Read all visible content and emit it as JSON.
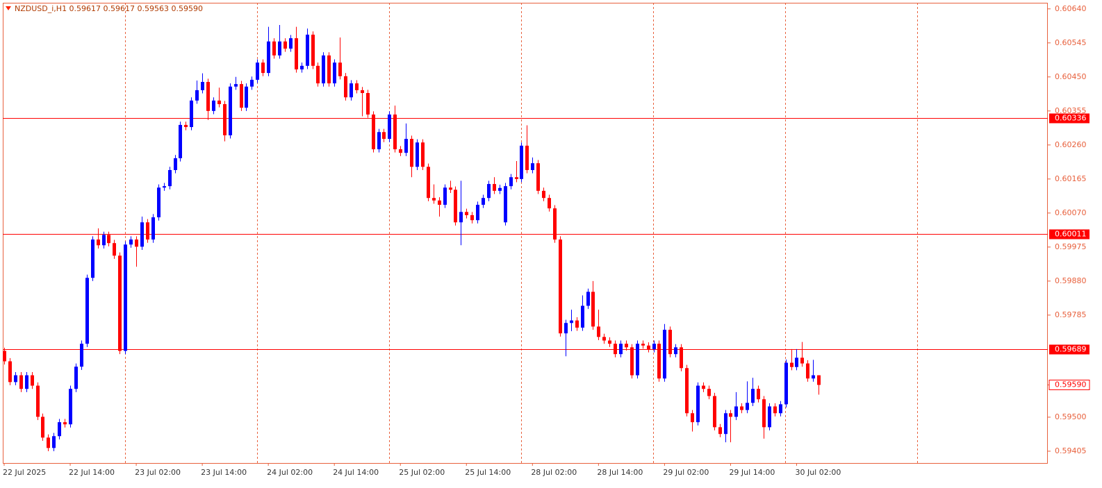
{
  "chart_data": {
    "type": "candlestick",
    "title": "NZDUSD_i,H1  0.59617 0.59617 0.59563 0.59590",
    "up_color": "#0000ff",
    "down_color": "#ff0000",
    "categories": [
      "22 Jul 2025",
      null,
      null,
      null,
      null,
      null,
      null,
      null,
      null,
      null,
      null,
      null,
      "22 Jul 14:00",
      null,
      null,
      null,
      null,
      null,
      null,
      null,
      null,
      null,
      null,
      null,
      "23 Jul 02:00",
      null,
      null,
      null,
      null,
      null,
      null,
      null,
      null,
      null,
      null,
      null,
      "23 Jul 14:00",
      null,
      null,
      null,
      null,
      null,
      null,
      null,
      null,
      null,
      null,
      null,
      "24 Jul 02:00",
      null,
      null,
      null,
      null,
      null,
      null,
      null,
      null,
      null,
      null,
      null,
      "24 Jul 14:00",
      null,
      null,
      null,
      null,
      null,
      null,
      null,
      null,
      null,
      null,
      null,
      "25 Jul 02:00",
      null,
      null,
      null,
      null,
      null,
      null,
      null,
      null,
      null,
      null,
      null,
      "25 Jul 14:00",
      null,
      null,
      null,
      null,
      null,
      null,
      null,
      null,
      null,
      null,
      null,
      "28 Jul 02:00",
      null,
      null,
      null,
      null,
      null,
      null,
      null,
      null,
      null,
      null,
      null,
      "28 Jul 14:00",
      null,
      null,
      null,
      null,
      null,
      null,
      null,
      null,
      null,
      null,
      null,
      "29 Jul 02:00",
      null,
      null,
      null,
      null,
      null,
      null,
      null,
      null,
      null,
      null,
      null,
      "29 Jul 14:00",
      null,
      null,
      null,
      null,
      null,
      null,
      null,
      null,
      null,
      null,
      null,
      "30 Jul 02:00",
      null,
      null,
      null,
      null
    ],
    "open": [
      0.59685,
      0.59656,
      0.59598,
      0.59617,
      0.59579,
      0.59617,
      0.59588,
      0.59501,
      0.59443,
      0.59414,
      0.59447,
      0.59486,
      0.5948,
      0.59579,
      0.59641,
      0.59705,
      0.59889,
      0.59996,
      0.5998,
      0.60009,
      0.59986,
      0.59951,
      0.59685,
      0.59982,
      0.59996,
      0.59976,
      0.60044,
      0.59996,
      0.60058,
      0.60141,
      0.60145,
      0.6019,
      0.60223,
      0.60316,
      0.6031,
      0.60384,
      0.60413,
      0.60436,
      0.60355,
      0.60384,
      0.60374,
      0.60287,
      0.60423,
      0.6043,
      0.60364,
      0.60423,
      0.60442,
      0.6049,
      0.60461,
      0.60549,
      0.6051,
      0.60549,
      0.60529,
      0.60558,
      0.60471,
      0.60481,
      0.60568,
      0.60481,
      0.60432,
      0.6051,
      0.60432,
      0.6049,
      0.60452,
      0.60393,
      0.60432,
      0.60413,
      0.60405,
      0.60345,
      0.60248,
      0.60296,
      0.60277,
      0.60345,
      0.60248,
      0.60238,
      0.60277,
      0.60199,
      0.60267,
      0.60199,
      0.60112,
      0.60105,
      0.60093,
      0.60141,
      0.60135,
      0.60044,
      0.60073,
      0.60064,
      0.6005,
      0.60093,
      0.60112,
      0.60151,
      0.60132,
      0.60044,
      0.60145,
      0.6017,
      0.60165,
      0.60258,
      0.6019,
      0.60209,
      0.60132,
      0.60112,
      0.60083,
      0.59996,
      0.59734,
      0.59763,
      0.5977,
      0.5975,
      0.59811,
      0.5985,
      0.59753,
      0.59724,
      0.59714,
      0.59705,
      0.59676,
      0.59705,
      0.59695,
      0.59617,
      0.59705,
      0.597,
      0.5969,
      0.59705,
      0.59608,
      0.59744,
      0.59676,
      0.59695,
      0.59637,
      0.59511,
      0.59486,
      0.59588,
      0.59579,
      0.59559,
      0.59472,
      0.59453,
      0.59511,
      0.59501,
      0.5953,
      0.5952,
      0.5954,
      0.59579,
      0.5955,
      0.59472,
      0.5953,
      0.59511,
      0.59536,
      0.59652,
      0.5964,
      0.59666,
      0.5965,
      0.59608,
      0.59617
    ],
    "high": [
      0.59694,
      0.59665,
      0.59626,
      0.59626,
      0.59626,
      0.59626,
      0.59597,
      0.5951,
      0.59452,
      0.59456,
      0.59495,
      0.59495,
      0.59588,
      0.5965,
      0.59714,
      0.59898,
      0.60005,
      0.60027,
      0.60018,
      0.60018,
      0.59995,
      0.5996,
      0.59991,
      0.60005,
      0.60005,
      0.6006,
      0.60053,
      0.60067,
      0.6015,
      0.60154,
      0.60199,
      0.60232,
      0.60325,
      0.60325,
      0.60393,
      0.6044,
      0.6046,
      0.60445,
      0.60393,
      0.6042,
      0.60383,
      0.60432,
      0.6045,
      0.60439,
      0.60432,
      0.60451,
      0.60499,
      0.60499,
      0.6059,
      0.60558,
      0.60595,
      0.60558,
      0.60567,
      0.6059,
      0.6049,
      0.60585,
      0.60577,
      0.6049,
      0.60519,
      0.60519,
      0.60499,
      0.6056,
      0.60461,
      0.60441,
      0.60441,
      0.60422,
      0.60414,
      0.60354,
      0.60305,
      0.60305,
      0.60354,
      0.6037,
      0.60257,
      0.6032,
      0.60286,
      0.60276,
      0.60276,
      0.60208,
      0.6015,
      0.60114,
      0.6015,
      0.6016,
      0.60144,
      0.6016,
      0.60082,
      0.60073,
      0.60102,
      0.60121,
      0.6016,
      0.6017,
      0.60149,
      0.60154,
      0.60179,
      0.60215,
      0.60267,
      0.60315,
      0.60225,
      0.60218,
      0.60141,
      0.60121,
      0.60092,
      0.60005,
      0.59772,
      0.598,
      0.59779,
      0.5984,
      0.59859,
      0.5988,
      0.598,
      0.59733,
      0.59723,
      0.59714,
      0.59714,
      0.59714,
      0.59704,
      0.59714,
      0.59714,
      0.59709,
      0.59714,
      0.59714,
      0.5976,
      0.59753,
      0.59704,
      0.59704,
      0.59646,
      0.5952,
      0.59597,
      0.59597,
      0.59588,
      0.59568,
      0.59481,
      0.5952,
      0.5952,
      0.5957,
      0.59539,
      0.596,
      0.5961,
      0.59588,
      0.59559,
      0.59539,
      0.59539,
      0.59545,
      0.59661,
      0.5969,
      0.5969,
      0.5971,
      0.59659,
      0.5966,
      0.59617
    ],
    "low": [
      0.59647,
      0.59589,
      0.59589,
      0.5957,
      0.5957,
      0.59579,
      0.59492,
      0.59434,
      0.59405,
      0.59405,
      0.59438,
      0.59471,
      0.59471,
      0.5957,
      0.59632,
      0.59696,
      0.5988,
      0.59971,
      0.59971,
      0.59977,
      0.59942,
      0.59676,
      0.59676,
      0.59973,
      0.5992,
      0.59967,
      0.59987,
      0.59987,
      0.60049,
      0.60132,
      0.60136,
      0.60181,
      0.60214,
      0.60301,
      0.60301,
      0.60375,
      0.60404,
      0.6033,
      0.60346,
      0.60365,
      0.6027,
      0.60278,
      0.60414,
      0.60355,
      0.60355,
      0.60414,
      0.60433,
      0.60452,
      0.60452,
      0.60501,
      0.60501,
      0.6052,
      0.6052,
      0.60462,
      0.60462,
      0.60472,
      0.60472,
      0.60423,
      0.60423,
      0.60423,
      0.60423,
      0.60443,
      0.60384,
      0.60384,
      0.60404,
      0.6034,
      0.60336,
      0.60239,
      0.60239,
      0.60268,
      0.60268,
      0.60239,
      0.60229,
      0.60229,
      0.6017,
      0.6019,
      0.6019,
      0.60103,
      0.60096,
      0.6006,
      0.60084,
      0.60126,
      0.60035,
      0.5998,
      0.60055,
      0.60041,
      0.60041,
      0.60084,
      0.60103,
      0.60123,
      0.60123,
      0.60035,
      0.60136,
      0.60156,
      0.60156,
      0.60181,
      0.60181,
      0.60123,
      0.60103,
      0.60074,
      0.59987,
      0.59725,
      0.5967,
      0.5974,
      0.59741,
      0.59741,
      0.59802,
      0.59744,
      0.59715,
      0.59705,
      0.59696,
      0.59667,
      0.59667,
      0.59686,
      0.59608,
      0.59608,
      0.59691,
      0.59681,
      0.59681,
      0.59599,
      0.59599,
      0.59667,
      0.59667,
      0.59628,
      0.59502,
      0.5946,
      0.59477,
      0.5957,
      0.5955,
      0.59463,
      0.59444,
      0.5943,
      0.5943,
      0.59492,
      0.59511,
      0.59511,
      0.59531,
      0.59541,
      0.5944,
      0.59463,
      0.59502,
      0.59502,
      0.59527,
      0.59631,
      0.59631,
      0.59641,
      0.59599,
      0.59599,
      0.59563
    ],
    "close": [
      0.59656,
      0.59598,
      0.59617,
      0.59579,
      0.59617,
      0.59588,
      0.59501,
      0.59443,
      0.59414,
      0.59447,
      0.59486,
      0.5948,
      0.59579,
      0.59641,
      0.59705,
      0.59889,
      0.59996,
      0.5998,
      0.60009,
      0.59986,
      0.59951,
      0.59685,
      0.59982,
      0.59996,
      0.59976,
      0.60044,
      0.59996,
      0.60058,
      0.60141,
      0.60145,
      0.6019,
      0.60223,
      0.60316,
      0.6031,
      0.60384,
      0.60413,
      0.60436,
      0.60355,
      0.60384,
      0.60374,
      0.60287,
      0.60423,
      0.6043,
      0.60364,
      0.60423,
      0.60442,
      0.6049,
      0.60461,
      0.60549,
      0.6051,
      0.60549,
      0.60529,
      0.60558,
      0.60471,
      0.60481,
      0.60568,
      0.60481,
      0.60432,
      0.6051,
      0.60432,
      0.6049,
      0.60452,
      0.60393,
      0.60432,
      0.60413,
      0.60405,
      0.60345,
      0.60248,
      0.60296,
      0.60277,
      0.60345,
      0.60248,
      0.60238,
      0.60277,
      0.60199,
      0.60267,
      0.60199,
      0.60112,
      0.60105,
      0.60093,
      0.60141,
      0.60135,
      0.60044,
      0.60073,
      0.60064,
      0.6005,
      0.60093,
      0.60112,
      0.60151,
      0.60132,
      0.6014,
      0.60145,
      0.6017,
      0.60165,
      0.60258,
      0.6019,
      0.60209,
      0.60132,
      0.60112,
      0.60083,
      0.59996,
      0.59734,
      0.59763,
      0.5977,
      0.5975,
      0.59811,
      0.5985,
      0.59753,
      0.59724,
      0.59714,
      0.59705,
      0.59676,
      0.59705,
      0.59695,
      0.59617,
      0.59705,
      0.597,
      0.5969,
      0.59705,
      0.59608,
      0.59744,
      0.59676,
      0.59695,
      0.59637,
      0.59511,
      0.59486,
      0.59588,
      0.59579,
      0.59559,
      0.59472,
      0.59453,
      0.59511,
      0.59501,
      0.5953,
      0.5952,
      0.5954,
      0.59579,
      0.5955,
      0.59472,
      0.5953,
      0.59511,
      0.59536,
      0.59652,
      0.5964,
      0.59666,
      0.5965,
      0.59608,
      0.59617,
      0.5959
    ],
    "ylim": [
      0.59372,
      0.60657
    ],
    "yticks": [
      {
        "value": 0.6064,
        "label": "0.60640"
      },
      0.60545,
      {
        "value": 0.6045,
        "label": "0.60450"
      },
      0.60355,
      {
        "value": 0.6026,
        "label": "0.60260"
      },
      0.60165,
      {
        "value": 0.6007,
        "label": "0.60070"
      },
      0.59975,
      {
        "value": 0.5988,
        "label": "0.59880"
      },
      0.59785,
      {
        "value": 0.5959,
        "label": "0.59590"
      },
      {
        "value": 0.595,
        "label": "0.59500"
      },
      0.59405
    ],
    "hlines": [
      0.60336,
      0.60011,
      0.59689
    ],
    "hline_color": "#ff0000",
    "price_label": {
      "value": 0.5959,
      "label": "0.59590"
    }
  }
}
